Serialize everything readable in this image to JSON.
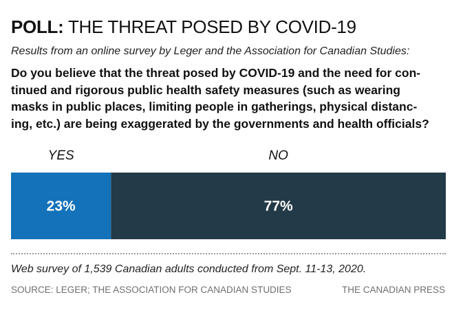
{
  "header": {
    "title_bold": "POLL:",
    "title_rest": "THE THREAT POSED BY COVID-19",
    "subtitle": "Results from an online survey by Leger and the Association for Canadian Studies:"
  },
  "question": {
    "lines": [
      "Do you believe that the threat posed by COVID-19 and the need for con-",
      "tinued and rigorous public health safety measures (such as wearing",
      "masks in public places, limiting people in gatherings, physical distanc-",
      "ing, etc.) are being exaggerated by the governments and health officials?"
    ]
  },
  "chart_data": {
    "type": "bar",
    "orientation": "horizontal-stacked",
    "categories": [
      "YES",
      "NO"
    ],
    "values": [
      23,
      77
    ],
    "value_labels": [
      "23%",
      "77%"
    ],
    "unit": "%",
    "colors": [
      "#1372b9",
      "#233a48"
    ],
    "xlim": [
      0,
      100
    ],
    "title": "POLL: THE THREAT POSED BY COVID-19"
  },
  "footer": {
    "note": "Web survey of 1,539 Canadian adults conducted from Sept. 11-13, 2020.",
    "source": "SOURCE: LEGER; THE ASSOCIATION FOR CANADIAN STUDIES",
    "credit": "THE CANADIAN PRESS"
  }
}
